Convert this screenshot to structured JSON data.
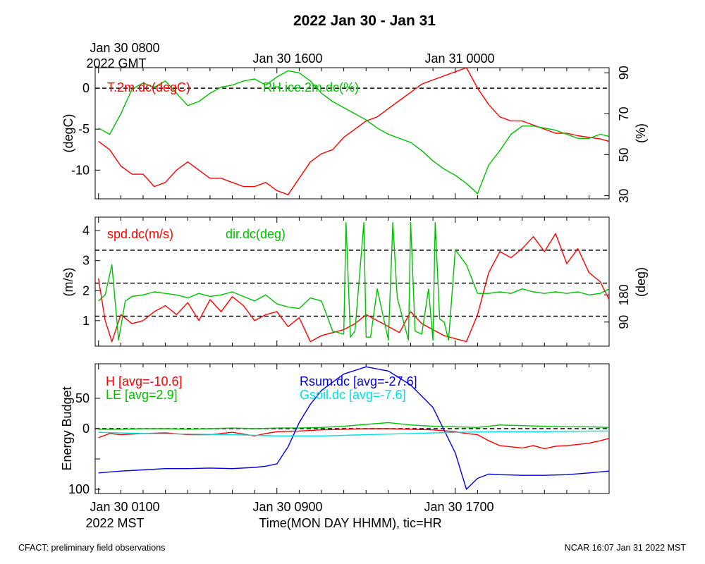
{
  "title": "2022 Jan 30 - Jan 31",
  "top_time_labels": {
    "start_line1": "Jan 30 0800",
    "start_line2": "2022 GMT",
    "mid": "Jan 30 1600",
    "end": "Jan 31 0000"
  },
  "bottom_time_labels": {
    "start": "Jan 30 0100",
    "start_line2": "2022 MST",
    "mid": "Jan 30 0900",
    "end": "Jan 30 1700"
  },
  "xlabel": "Time(MON DAY HHMM), tic=HR",
  "footer_left": "CFACT: preliminary field observations",
  "footer_right": "NCAR 16:07 Jan 31 2022 MST",
  "chart_data": [
    {
      "type": "line",
      "panel": "temperature-humidity",
      "ylabel_left": "(degC)",
      "ylabel_right": "(%)",
      "ylim_left": [
        -13.5,
        2.5
      ],
      "ylim_right": [
        28.5,
        92.5
      ],
      "yticks_left": [
        -10,
        -5,
        0
      ],
      "yticks_right": [
        30,
        50,
        70,
        90
      ],
      "xlim_hours_mst": [
        -0.15,
        22.9
      ],
      "ref_lines_left": [
        0
      ],
      "series": [
        {
          "name": "T.2m.dc(degC)",
          "color": "#ff0000",
          "axis": "left",
          "x": [
            0,
            0.5,
            1,
            1.5,
            2,
            2.5,
            3,
            3.5,
            4,
            4.5,
            5,
            5.5,
            6,
            6.5,
            7,
            7.5,
            8,
            8.5,
            9,
            9.5,
            10,
            10.5,
            11,
            11.5,
            12,
            12.5,
            13,
            13.5,
            14,
            14.5,
            15,
            15.5,
            16,
            16.5,
            17,
            17.5,
            18,
            18.5,
            19,
            19.5,
            20,
            20.5,
            21,
            21.5,
            22,
            22.5,
            22.9
          ],
          "values": [
            -6.5,
            -7.5,
            -9.5,
            -10.5,
            -10.5,
            -12,
            -11.5,
            -10,
            -9,
            -10,
            -11,
            -11,
            -11.5,
            -12,
            -12,
            -11.5,
            -12.5,
            -13,
            -11,
            -9,
            -8,
            -7.5,
            -6,
            -5,
            -4,
            -3.5,
            -2.5,
            -1.5,
            -0.5,
            0.5,
            1,
            1.5,
            2,
            2.5,
            0,
            -2,
            -3.5,
            -4,
            -4,
            -4.5,
            -5,
            -5.5,
            -5.5,
            -5.8,
            -6,
            -6.2,
            -6.5
          ]
        },
        {
          "name": "RH.ice.2m.dc(%)",
          "color": "#00c000",
          "axis": "right",
          "x": [
            0,
            0.5,
            1,
            1.5,
            2,
            2.5,
            3,
            3.5,
            4,
            4.5,
            5,
            5.5,
            6,
            6.5,
            7,
            7.5,
            8,
            8.5,
            9,
            9.5,
            10,
            10.5,
            11,
            11.5,
            12,
            12.5,
            13,
            13.5,
            14,
            14.5,
            15,
            15.5,
            16,
            16.5,
            17,
            17.5,
            18,
            18.5,
            19,
            19.5,
            20,
            20.5,
            21,
            21.5,
            22,
            22.5,
            22.9
          ],
          "values": [
            63,
            60,
            70,
            82,
            85,
            83,
            86,
            80,
            74,
            76,
            80,
            83,
            84,
            86,
            87,
            84,
            88,
            91,
            90,
            86,
            80,
            76,
            73,
            70,
            67,
            63,
            60,
            58,
            56,
            52,
            47,
            43,
            40,
            36,
            31,
            45,
            52,
            60,
            64,
            64,
            63,
            62,
            60,
            58,
            58,
            60,
            59
          ]
        }
      ]
    },
    {
      "type": "line",
      "panel": "wind",
      "ylabel_left": "(m/s)",
      "ylabel_right": "(deg)",
      "ylim_left": [
        0.15,
        4.45
      ],
      "ylim_right": [
        10,
        438
      ],
      "yticks_left": [
        1,
        2,
        3,
        4
      ],
      "yticks_right": [
        90,
        180
      ],
      "xlim_hours_mst": [
        -0.15,
        22.9
      ],
      "ref_lines_left": [
        1.15,
        2.25,
        3.35
      ],
      "series": [
        {
          "name": "spd.dc(m/s)",
          "color": "#ff0000",
          "axis": "left",
          "x": [
            0,
            0.3,
            0.6,
            1,
            1.5,
            2,
            2.5,
            3,
            3.5,
            4,
            4.5,
            5,
            5.5,
            6,
            6.5,
            7,
            7.5,
            8,
            8.5,
            9,
            9.5,
            10,
            10.5,
            11,
            11.5,
            12,
            12.5,
            13,
            13.5,
            14,
            14.5,
            15,
            15.5,
            16,
            16.5,
            17,
            17.5,
            18,
            18.5,
            19,
            19.5,
            20,
            20.5,
            21,
            21.5,
            22,
            22.5,
            22.9
          ],
          "values": [
            2.4,
            1.0,
            0.3,
            1.2,
            0.9,
            1.0,
            1.3,
            1.5,
            1.2,
            1.6,
            1.0,
            1.7,
            1.3,
            1.8,
            1.5,
            1.0,
            1.2,
            1.3,
            0.8,
            1.1,
            0.3,
            0.5,
            0.6,
            0.7,
            0.9,
            1.2,
            1.0,
            0.8,
            0.6,
            1.3,
            0.9,
            0.7,
            0.5,
            0.4,
            0.3,
            1.2,
            2.6,
            3.3,
            3.1,
            3.4,
            3.8,
            3.3,
            3.9,
            2.9,
            3.4,
            2.6,
            2.3,
            1.7
          ]
        },
        {
          "name": "dir.dc(deg)",
          "color": "#00c000",
          "axis": "right",
          "x": [
            0,
            0.3,
            0.6,
            0.9,
            1.2,
            1.5,
            2,
            2.5,
            3,
            3.5,
            4,
            4.5,
            5,
            5.5,
            6,
            6.5,
            7,
            7.5,
            8,
            8.5,
            9,
            9.5,
            10,
            10.5,
            11,
            11.1,
            11.3,
            11.5,
            11.9,
            12,
            12.2,
            12.5,
            13,
            13.2,
            13.4,
            13.9,
            14,
            14.2,
            14.5,
            14.8,
            15,
            15.1,
            15.3,
            15.5,
            15.7,
            16,
            16.5,
            17,
            17.5,
            18,
            18.5,
            19,
            19.5,
            20,
            20.5,
            21,
            21.5,
            22,
            22.5,
            22.9
          ],
          "values": [
            160,
            180,
            280,
            30,
            160,
            175,
            180,
            190,
            185,
            180,
            170,
            185,
            175,
            180,
            190,
            175,
            160,
            180,
            150,
            140,
            135,
            170,
            160,
            60,
            50,
            420,
            40,
            60,
            420,
            40,
            40,
            200,
            30,
            420,
            170,
            30,
            420,
            60,
            50,
            200,
            30,
            420,
            100,
            90,
            30,
            330,
            280,
            185,
            185,
            190,
            185,
            200,
            190,
            185,
            190,
            185,
            190,
            180,
            185,
            200
          ]
        }
      ]
    },
    {
      "type": "line",
      "panel": "energy-budget",
      "ylabel_left": "Energy Budget",
      "ylim_left": [
        -107,
        107
      ],
      "yticks_left": [
        -100,
        -50,
        0,
        50
      ],
      "ytick_labels_left": [
        "100",
        "",
        "0",
        "50"
      ],
      "xlim_hours_mst": [
        -0.15,
        22.9
      ],
      "ref_lines_left": [
        0
      ],
      "series": [
        {
          "name": "H",
          "label": "H [avg=-10.6]",
          "color": "#ff0000",
          "x": [
            0,
            0.5,
            1,
            2,
            3,
            4,
            5,
            6,
            7,
            7.5,
            8,
            9,
            10,
            11,
            12,
            13,
            14,
            15,
            16,
            16.5,
            17,
            17.5,
            18,
            18.5,
            19,
            19.5,
            20,
            20.5,
            21,
            21.5,
            22,
            22.5,
            22.9
          ],
          "values": [
            -15,
            -8,
            -10,
            -8,
            -7,
            -10,
            -10,
            -6,
            -12,
            -8,
            -5,
            -4,
            -2,
            -1,
            0,
            0,
            -1,
            -2,
            -5,
            -8,
            -10,
            -20,
            -28,
            -30,
            -32,
            -28,
            -33,
            -29,
            -28,
            -26,
            -24,
            -20,
            -16
          ]
        },
        {
          "name": "LE",
          "label": "LE [avg=2.9]",
          "color": "#00c000",
          "x": [
            0,
            1,
            2,
            3,
            4,
            5,
            6,
            7,
            8,
            9,
            10,
            11,
            12,
            13,
            14,
            15,
            16,
            17,
            18,
            19,
            20,
            21,
            22,
            22.9
          ],
          "values": [
            -1,
            -1,
            0,
            0,
            -1,
            0,
            1,
            0,
            1,
            1,
            2,
            4,
            7,
            10,
            6,
            4,
            3,
            2,
            6,
            5,
            4,
            3,
            3,
            2
          ]
        },
        {
          "name": "Rsum.dc",
          "label": "Rsum.dc [avg=-27.6]",
          "color": "#0000e0",
          "x": [
            0,
            1,
            2,
            3,
            4,
            5,
            6,
            7,
            7.5,
            8,
            8.5,
            9,
            9.5,
            10,
            11,
            12,
            13,
            14,
            15,
            16,
            16.5,
            17,
            17.5,
            18,
            19,
            20,
            21,
            22,
            22.9
          ],
          "values": [
            -73,
            -70,
            -68,
            -66,
            -66,
            -65,
            -66,
            -64,
            -62,
            -58,
            -30,
            10,
            40,
            63,
            90,
            102,
            95,
            72,
            35,
            -40,
            -100,
            -82,
            -75,
            -76,
            -77,
            -77,
            -76,
            -73,
            -70
          ]
        },
        {
          "name": "Gsoil.dc",
          "label": "Gsoil.dc [avg=-7.6]",
          "color": "#00e0e0",
          "x": [
            0,
            2,
            4,
            6,
            8,
            10,
            12,
            14,
            16,
            18,
            20,
            22,
            22.9
          ],
          "values": [
            -6,
            -8,
            -9,
            -10,
            -12,
            -12,
            -10,
            -8,
            -6,
            -5,
            -5,
            -4,
            -4
          ]
        }
      ]
    }
  ]
}
